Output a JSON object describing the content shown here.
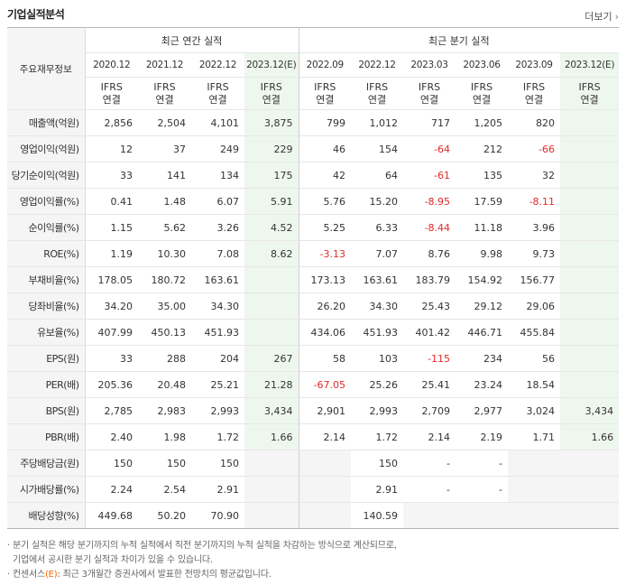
{
  "header": {
    "title": "기업실적분석",
    "more_label": "더보기"
  },
  "table": {
    "corner_label": "주요재무정보",
    "annual_label": "최근 연간 실적",
    "quarter_label": "최근 분기 실적",
    "annual_periods": [
      "2020.12",
      "2021.12",
      "2022.12",
      "2023.12(E)"
    ],
    "quarter_periods": [
      "2022.09",
      "2022.12",
      "2023.03",
      "2023.06",
      "2023.09",
      "2023.12(E)"
    ],
    "basis_line1": "IFRS",
    "basis_line2": "연결",
    "rows": [
      {
        "label": "매출액(억원)",
        "values": [
          "2,856",
          "2,504",
          "4,101",
          "3,875",
          "799",
          "1,012",
          "717",
          "1,205",
          "820",
          ""
        ]
      },
      {
        "label": "영업이익(억원)",
        "values": [
          "12",
          "37",
          "249",
          "229",
          "46",
          "154",
          "-64",
          "212",
          "-66",
          ""
        ]
      },
      {
        "label": "당기순이익(억원)",
        "values": [
          "33",
          "141",
          "134",
          "175",
          "42",
          "64",
          "-61",
          "135",
          "32",
          ""
        ]
      },
      {
        "label": "영업이익률(%)",
        "values": [
          "0.41",
          "1.48",
          "6.07",
          "5.91",
          "5.76",
          "15.20",
          "-8.95",
          "17.59",
          "-8.11",
          ""
        ]
      },
      {
        "label": "순이익률(%)",
        "values": [
          "1.15",
          "5.62",
          "3.26",
          "4.52",
          "5.25",
          "6.33",
          "-8.44",
          "11.18",
          "3.96",
          ""
        ]
      },
      {
        "label": "ROE(%)",
        "values": [
          "1.19",
          "10.30",
          "7.08",
          "8.62",
          "-3.13",
          "7.07",
          "8.76",
          "9.98",
          "9.73",
          ""
        ]
      },
      {
        "label": "부채비율(%)",
        "values": [
          "178.05",
          "180.72",
          "163.61",
          "",
          "173.13",
          "163.61",
          "183.79",
          "154.92",
          "156.77",
          ""
        ]
      },
      {
        "label": "당좌비율(%)",
        "values": [
          "34.20",
          "35.00",
          "34.30",
          "",
          "26.20",
          "34.30",
          "25.43",
          "29.12",
          "29.06",
          ""
        ]
      },
      {
        "label": "유보율(%)",
        "values": [
          "407.99",
          "450.13",
          "451.93",
          "",
          "434.06",
          "451.93",
          "401.42",
          "446.71",
          "455.84",
          ""
        ]
      },
      {
        "label": "EPS(원)",
        "values": [
          "33",
          "288",
          "204",
          "267",
          "58",
          "103",
          "-115",
          "234",
          "56",
          ""
        ]
      },
      {
        "label": "PER(배)",
        "values": [
          "205.36",
          "20.48",
          "25.21",
          "21.28",
          "-67.05",
          "25.26",
          "25.41",
          "23.24",
          "18.54",
          ""
        ]
      },
      {
        "label": "BPS(원)",
        "values": [
          "2,785",
          "2,983",
          "2,993",
          "3,434",
          "2,901",
          "2,993",
          "2,709",
          "2,977",
          "3,024",
          "3,434"
        ]
      },
      {
        "label": "PBR(배)",
        "values": [
          "2.40",
          "1.98",
          "1.72",
          "1.66",
          "2.14",
          "1.72",
          "2.14",
          "2.19",
          "1.71",
          "1.66"
        ]
      },
      {
        "label": "주당배당금(원)",
        "values": [
          "150",
          "150",
          "150",
          "",
          "",
          "150",
          "-",
          "-",
          "",
          ""
        ]
      },
      {
        "label": "시가배당률(%)",
        "values": [
          "2.24",
          "2.54",
          "2.91",
          "",
          "",
          "2.91",
          "-",
          "-",
          "",
          ""
        ]
      },
      {
        "label": "배당성향(%)",
        "values": [
          "449.68",
          "50.20",
          "70.90",
          "",
          "",
          "140.59",
          "",
          "",
          "",
          ""
        ]
      }
    ]
  },
  "notes": {
    "line1_mark": "·",
    "line1": "분기 실적은 해당 분기까지의 누적 실적에서 직전 분기까지의 누적 실적을 차감하는 방식으로 계산되므로,",
    "line2": "기업에서 공시한 분기 실적과 차이가 있을 수 있습니다.",
    "line3_mark": "·",
    "line3_prefix": "컨센서스",
    "line3_e": "(E)",
    "line3": ": 최근 3개월간 증권사에서 발표한 전망치의 평균값입니다."
  },
  "colors": {
    "negative": "#e02a2a",
    "basis": "#ff6600",
    "estimate_bg": "#eef7ee",
    "label_bg": "#f5f5f5"
  }
}
